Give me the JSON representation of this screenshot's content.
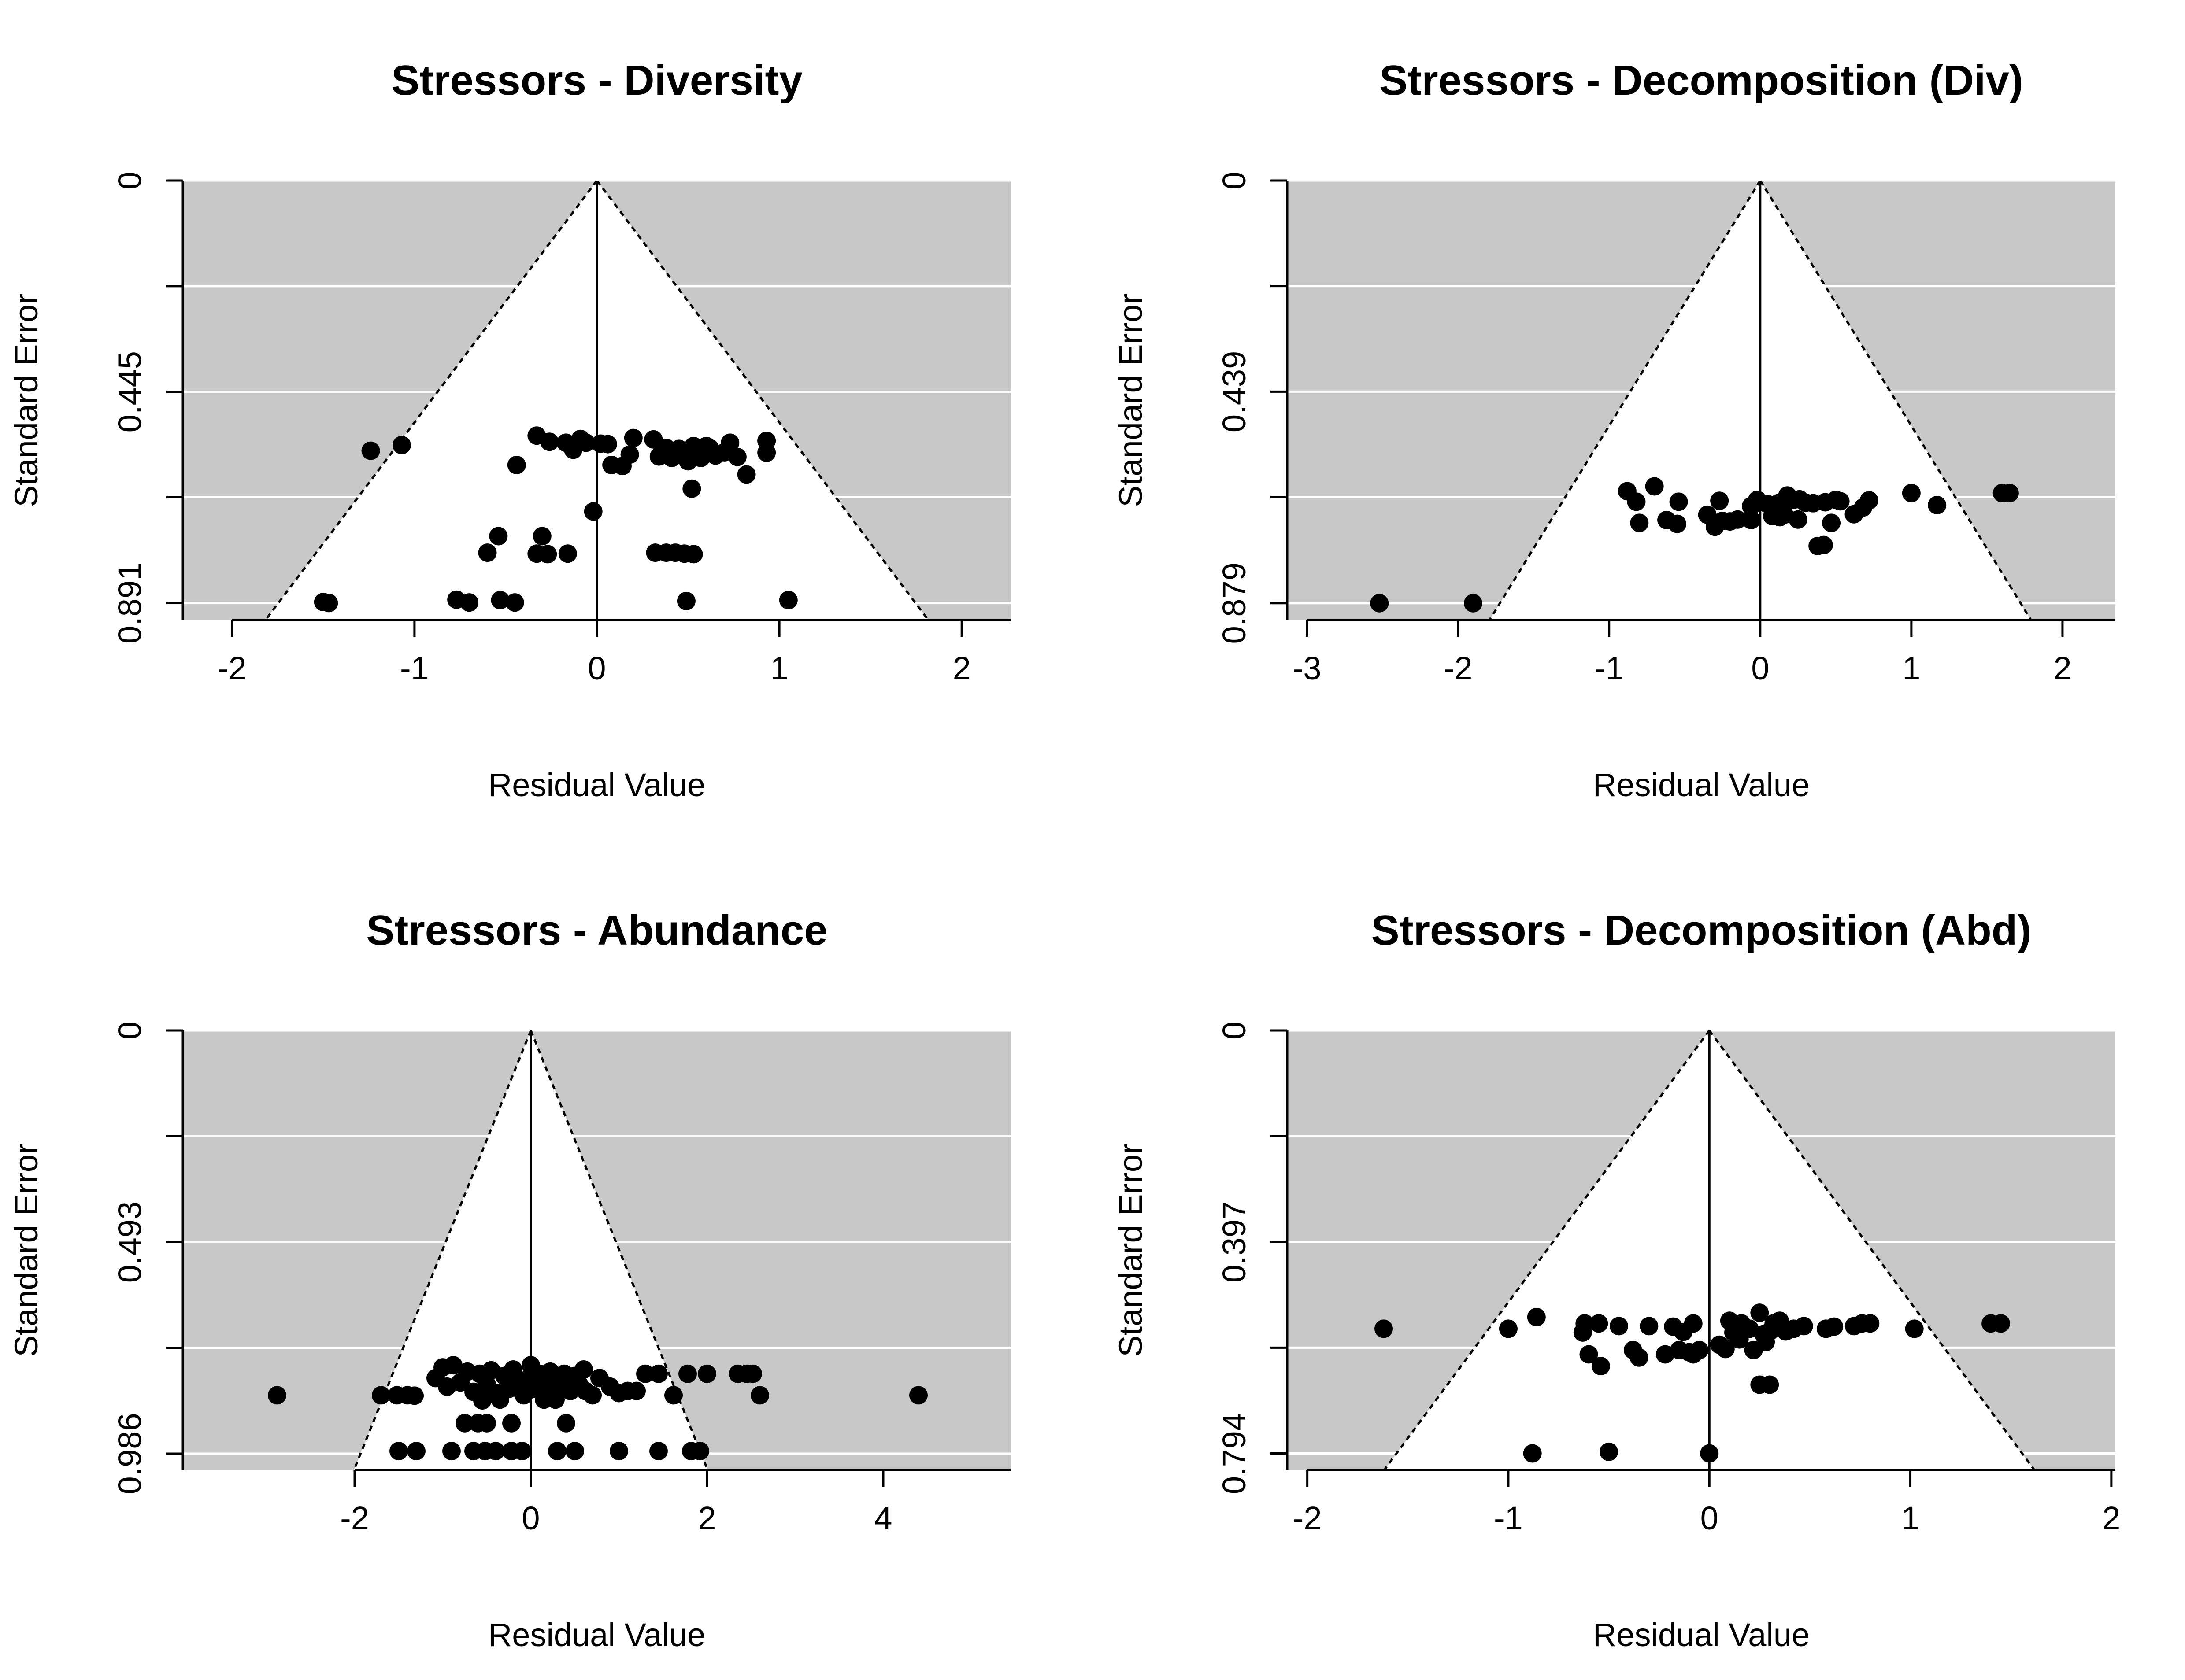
{
  "chart_data": [
    {
      "type": "scatter",
      "subtype": "funnel",
      "title": "Stressors - Diversity",
      "xlabel": "Residual Value",
      "ylabel": "Standard Error",
      "xlim": [
        -2.27,
        2.27
      ],
      "ylim": [
        0.927,
        0
      ],
      "x_ticks": [
        "-2",
        "-1",
        "0",
        "1",
        "2"
      ],
      "x_tick_values": [
        -2,
        -1,
        0,
        1,
        2
      ],
      "y_ticks": [
        "0",
        "",
        "0.445",
        "",
        "0.891"
      ],
      "y_tick_values": [
        0,
        0.2228,
        0.4455,
        0.6683,
        0.891
      ],
      "funnel": {
        "center": 0,
        "z": 1.96
      },
      "background": "#c8c8c8",
      "points": [
        [
          -1.5,
          0.889
        ],
        [
          -1.47,
          0.891
        ],
        [
          -1.24,
          0.57
        ],
        [
          -1.07,
          0.558
        ],
        [
          -0.77,
          0.884
        ],
        [
          -0.7,
          0.89
        ],
        [
          -0.53,
          0.885
        ],
        [
          -0.45,
          0.89
        ],
        [
          -0.44,
          0.6
        ],
        [
          -0.33,
          0.538
        ],
        [
          -0.26,
          0.551
        ],
        [
          -0.17,
          0.553
        ],
        [
          -0.13,
          0.568
        ],
        [
          -0.09,
          0.545
        ],
        [
          -0.06,
          0.553
        ],
        [
          0.02,
          0.555
        ],
        [
          0.06,
          0.556
        ],
        [
          0.08,
          0.6
        ],
        [
          0.14,
          0.602
        ],
        [
          0.18,
          0.578
        ],
        [
          0.2,
          0.543
        ],
        [
          0.31,
          0.546
        ],
        [
          0.34,
          0.582
        ],
        [
          0.38,
          0.564
        ],
        [
          0.41,
          0.585
        ],
        [
          0.45,
          0.566
        ],
        [
          0.5,
          0.592
        ],
        [
          0.53,
          0.56
        ],
        [
          0.57,
          0.585
        ],
        [
          0.6,
          0.56
        ],
        [
          0.65,
          0.58
        ],
        [
          0.7,
          0.573
        ],
        [
          0.73,
          0.553
        ],
        [
          0.77,
          0.583
        ],
        [
          0.82,
          0.62
        ],
        [
          0.93,
          0.549
        ],
        [
          0.93,
          0.574
        ],
        [
          0.37,
          0.57
        ],
        [
          0.45,
          0.575
        ],
        [
          0.62,
          0.565
        ],
        [
          0.52,
          0.65
        ],
        [
          -0.02,
          0.698
        ],
        [
          -0.54,
          0.75
        ],
        [
          -0.6,
          0.785
        ],
        [
          -0.3,
          0.75
        ],
        [
          -0.33,
          0.787
        ],
        [
          -0.27,
          0.788
        ],
        [
          -0.16,
          0.787
        ],
        [
          0.32,
          0.785
        ],
        [
          0.38,
          0.785
        ],
        [
          0.43,
          0.785
        ],
        [
          0.48,
          0.787
        ],
        [
          0.53,
          0.788
        ],
        [
          0.49,
          0.887
        ],
        [
          1.05,
          0.885
        ]
      ]
    },
    {
      "type": "scatter",
      "subtype": "funnel",
      "title": "Stressors - Decomposition (Div)",
      "xlabel": "Residual Value",
      "ylabel": "Standard Error",
      "xlim": [
        -3.13,
        2.35
      ],
      "ylim": [
        0.914,
        0
      ],
      "x_ticks": [
        "-3",
        "-2",
        "-1",
        "0",
        "1",
        "2"
      ],
      "x_tick_values": [
        -3,
        -2,
        -1,
        0,
        1,
        2
      ],
      "y_ticks": [
        "0",
        "",
        "0.439",
        "",
        "0.879"
      ],
      "y_tick_values": [
        0,
        0.2195,
        0.439,
        0.6585,
        0.879
      ],
      "funnel": {
        "center": 0,
        "z": 1.96
      },
      "background": "#c8c8c8",
      "points": [
        [
          -2.52,
          0.879
        ],
        [
          -1.9,
          0.879
        ],
        [
          -0.88,
          0.646
        ],
        [
          -0.82,
          0.668
        ],
        [
          -0.8,
          0.712
        ],
        [
          -0.7,
          0.636
        ],
        [
          -0.62,
          0.706
        ],
        [
          -0.55,
          0.714
        ],
        [
          -0.54,
          0.668
        ],
        [
          -0.35,
          0.695
        ],
        [
          -0.3,
          0.72
        ],
        [
          -0.27,
          0.666
        ],
        [
          -0.25,
          0.708
        ],
        [
          -0.2,
          0.709
        ],
        [
          -0.15,
          0.705
        ],
        [
          -0.06,
          0.706
        ],
        [
          -0.06,
          0.677
        ],
        [
          -0.02,
          0.664
        ],
        [
          0.05,
          0.673
        ],
        [
          0.08,
          0.698
        ],
        [
          0.12,
          0.671
        ],
        [
          0.16,
          0.695
        ],
        [
          0.18,
          0.655
        ],
        [
          0.22,
          0.664
        ],
        [
          0.26,
          0.663
        ],
        [
          0.3,
          0.67
        ],
        [
          0.35,
          0.671
        ],
        [
          0.38,
          0.76
        ],
        [
          0.42,
          0.758
        ],
        [
          0.43,
          0.669
        ],
        [
          0.47,
          0.712
        ],
        [
          0.5,
          0.664
        ],
        [
          0.53,
          0.667
        ],
        [
          0.62,
          0.694
        ],
        [
          0.68,
          0.68
        ],
        [
          0.72,
          0.665
        ],
        [
          1.0,
          0.65
        ],
        [
          1.17,
          0.675
        ],
        [
          1.6,
          0.65
        ],
        [
          1.65,
          0.65
        ],
        [
          0.13,
          0.7
        ],
        [
          0.25,
          0.705
        ]
      ]
    },
    {
      "type": "scatter",
      "subtype": "funnel",
      "title": "Stressors - Abundance",
      "xlabel": "Residual Value",
      "ylabel": "Standard Error",
      "xlim": [
        -3.95,
        5.45
      ],
      "ylim": [
        1.024,
        0
      ],
      "x_ticks": [
        "-2",
        "0",
        "2",
        "4"
      ],
      "x_tick_values": [
        -2,
        0,
        2,
        4
      ],
      "y_ticks": [
        "0",
        "",
        "0.493",
        "",
        "0.986"
      ],
      "y_tick_values": [
        0,
        0.2465,
        0.493,
        0.7395,
        0.986
      ],
      "funnel": {
        "center": 0,
        "z": 1.96
      },
      "background": "#c8c8c8",
      "points": [
        [
          -2.88,
          0.85
        ],
        [
          -1.7,
          0.85
        ],
        [
          -1.52,
          0.85
        ],
        [
          -1.4,
          0.85
        ],
        [
          -1.32,
          0.851
        ],
        [
          -1.5,
          0.98
        ],
        [
          -1.3,
          0.98
        ],
        [
          -0.9,
          0.98
        ],
        [
          -0.65,
          0.98
        ],
        [
          -0.52,
          0.98
        ],
        [
          -0.4,
          0.98
        ],
        [
          -0.22,
          0.98
        ],
        [
          -0.1,
          0.98
        ],
        [
          0.3,
          0.98
        ],
        [
          0.5,
          0.98
        ],
        [
          1.0,
          0.98
        ],
        [
          1.45,
          0.98
        ],
        [
          1.82,
          0.98
        ],
        [
          1.92,
          0.98
        ],
        [
          -0.75,
          0.915
        ],
        [
          -0.6,
          0.915
        ],
        [
          -0.5,
          0.915
        ],
        [
          -0.22,
          0.915
        ],
        [
          0.4,
          0.915
        ],
        [
          -1.08,
          0.81
        ],
        [
          -1.0,
          0.785
        ],
        [
          -0.95,
          0.83
        ],
        [
          -0.88,
          0.78
        ],
        [
          -0.8,
          0.82
        ],
        [
          -0.72,
          0.795
        ],
        [
          -0.65,
          0.842
        ],
        [
          -0.58,
          0.8
        ],
        [
          -0.5,
          0.825
        ],
        [
          -0.45,
          0.792
        ],
        [
          -0.38,
          0.845
        ],
        [
          -0.3,
          0.805
        ],
        [
          -0.25,
          0.835
        ],
        [
          -0.2,
          0.79
        ],
        [
          -0.15,
          0.82
        ],
        [
          -0.08,
          0.85
        ],
        [
          -0.02,
          0.81
        ],
        [
          0.0,
          0.78
        ],
        [
          0.05,
          0.835
        ],
        [
          0.1,
          0.8
        ],
        [
          0.15,
          0.825
        ],
        [
          0.22,
          0.795
        ],
        [
          0.28,
          0.86
        ],
        [
          0.32,
          0.82
        ],
        [
          0.38,
          0.8
        ],
        [
          0.45,
          0.84
        ],
        [
          0.5,
          0.805
        ],
        [
          0.55,
          0.825
        ],
        [
          0.6,
          0.79
        ],
        [
          0.7,
          0.85
        ],
        [
          0.78,
          0.81
        ],
        [
          0.9,
          0.83
        ],
        [
          1.0,
          0.845
        ],
        [
          1.1,
          0.84
        ],
        [
          1.2,
          0.84
        ],
        [
          1.3,
          0.8
        ],
        [
          1.45,
          0.8
        ],
        [
          1.62,
          0.85
        ],
        [
          1.78,
          0.8
        ],
        [
          2.0,
          0.8
        ],
        [
          2.35,
          0.8
        ],
        [
          2.45,
          0.8
        ],
        [
          2.52,
          0.8
        ],
        [
          2.6,
          0.85
        ],
        [
          4.4,
          0.85
        ],
        [
          -0.35,
          0.86
        ],
        [
          0.15,
          0.86
        ],
        [
          -0.55,
          0.862
        ],
        [
          0.25,
          0.84
        ],
        [
          -0.1,
          0.842
        ],
        [
          0.62,
          0.84
        ]
      ]
    },
    {
      "type": "scatter",
      "subtype": "funnel",
      "title": "Stressors - Decomposition (Abd)",
      "xlabel": "Residual Value",
      "ylabel": "Standard Error",
      "xlim": [
        -2.1,
        2.02
      ],
      "ylim": [
        0.825,
        0
      ],
      "x_ticks": [
        "-2",
        "-1",
        "0",
        "1",
        "2"
      ],
      "x_tick_values": [
        -2,
        -1,
        0,
        1,
        2
      ],
      "y_ticks": [
        "0",
        "",
        "0.397",
        "",
        "0.794"
      ],
      "y_tick_values": [
        0,
        0.1985,
        0.397,
        0.5955,
        0.794
      ],
      "funnel": {
        "center": 0,
        "z": 1.96
      },
      "background": "#c8c8c8",
      "points": [
        [
          -1.62,
          0.56
        ],
        [
          -1.0,
          0.56
        ],
        [
          -0.86,
          0.538
        ],
        [
          -0.88,
          0.794
        ],
        [
          -0.5,
          0.791
        ],
        [
          0.0,
          0.794
        ],
        [
          -0.63,
          0.567
        ],
        [
          -0.62,
          0.55
        ],
        [
          -0.6,
          0.608
        ],
        [
          -0.55,
          0.55
        ],
        [
          -0.54,
          0.63
        ],
        [
          -0.45,
          0.555
        ],
        [
          -0.38,
          0.6
        ],
        [
          -0.35,
          0.614
        ],
        [
          -0.3,
          0.555
        ],
        [
          -0.22,
          0.608
        ],
        [
          -0.18,
          0.556
        ],
        [
          -0.15,
          0.6
        ],
        [
          -0.13,
          0.566
        ],
        [
          -0.1,
          0.604
        ],
        [
          -0.08,
          0.55
        ],
        [
          -0.05,
          0.6
        ],
        [
          -0.08,
          0.608
        ],
        [
          0.05,
          0.59
        ],
        [
          0.08,
          0.598
        ],
        [
          0.12,
          0.567
        ],
        [
          0.16,
          0.55
        ],
        [
          0.2,
          0.56
        ],
        [
          0.22,
          0.6
        ],
        [
          0.25,
          0.53
        ],
        [
          0.27,
          0.57
        ],
        [
          0.3,
          0.565
        ],
        [
          0.32,
          0.55
        ],
        [
          0.34,
          0.557
        ],
        [
          0.38,
          0.565
        ],
        [
          0.42,
          0.56
        ],
        [
          0.25,
          0.665
        ],
        [
          0.3,
          0.665
        ],
        [
          0.47,
          0.555
        ],
        [
          0.58,
          0.56
        ],
        [
          0.62,
          0.556
        ],
        [
          0.72,
          0.555
        ],
        [
          0.76,
          0.55
        ],
        [
          0.8,
          0.55
        ],
        [
          1.02,
          0.56
        ],
        [
          1.4,
          0.55
        ],
        [
          1.45,
          0.55
        ],
        [
          0.1,
          0.545
        ],
        [
          0.15,
          0.58
        ],
        [
          0.28,
          0.585
        ],
        [
          0.35,
          0.545
        ]
      ]
    }
  ]
}
